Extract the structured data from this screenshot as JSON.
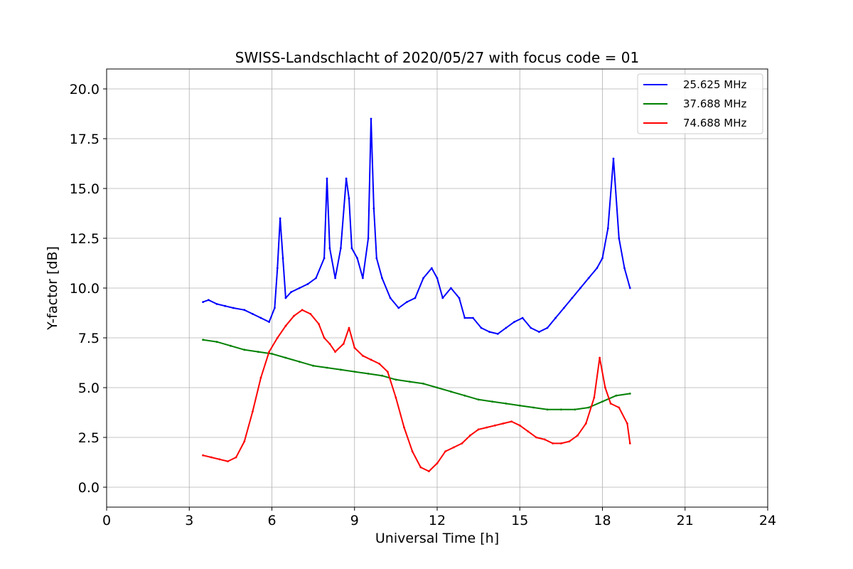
{
  "chart_data": {
    "type": "line",
    "title": "SWISS-Landschlacht of 2020/05/27 with focus code = 01",
    "xlabel": "Universal Time [h]",
    "ylabel": "Y-factor [dB]",
    "xlim": [
      0,
      24
    ],
    "ylim": [
      -1.0,
      21.0
    ],
    "xticks": [
      0,
      3,
      6,
      9,
      12,
      15,
      18,
      21,
      24
    ],
    "xtick_labels": [
      "0",
      "3",
      "6",
      "9",
      "12",
      "15",
      "18",
      "21",
      "24"
    ],
    "yticks": [
      0,
      2.5,
      5,
      7.5,
      10,
      12.5,
      15,
      17.5,
      20
    ],
    "ytick_labels": [
      "0.0",
      "2.5",
      "5.0",
      "7.5",
      "10.0",
      "12.5",
      "15.0",
      "17.5",
      "20.0"
    ],
    "grid": true,
    "legend_position": "top-right",
    "series": [
      {
        "name": "25.625 MHz",
        "color": "#0000ff",
        "x": [
          3.5,
          3.7,
          4.0,
          4.3,
          4.6,
          5.0,
          5.3,
          5.6,
          5.9,
          6.1,
          6.2,
          6.3,
          6.4,
          6.5,
          6.7,
          7.0,
          7.3,
          7.6,
          7.9,
          8.0,
          8.1,
          8.3,
          8.5,
          8.7,
          8.8,
          8.9,
          9.1,
          9.3,
          9.5,
          9.6,
          9.7,
          9.8,
          10.0,
          10.3,
          10.6,
          10.9,
          11.2,
          11.5,
          11.8,
          12.0,
          12.2,
          12.5,
          12.8,
          13.0,
          13.3,
          13.6,
          13.9,
          14.2,
          14.5,
          14.8,
          15.1,
          15.4,
          15.7,
          16.0,
          16.3,
          16.6,
          16.9,
          17.2,
          17.5,
          17.8,
          18.0,
          18.2,
          18.4,
          18.6,
          18.8,
          19.0
        ],
        "y": [
          9.3,
          9.4,
          9.2,
          9.1,
          9.0,
          8.9,
          8.7,
          8.5,
          8.3,
          9.0,
          11.0,
          13.5,
          11.5,
          9.5,
          9.8,
          10.0,
          10.2,
          10.5,
          11.5,
          15.5,
          12.0,
          10.5,
          12.0,
          15.5,
          14.5,
          12.0,
          11.5,
          10.5,
          12.5,
          18.5,
          14.0,
          11.5,
          10.5,
          9.5,
          9.0,
          9.3,
          9.5,
          10.5,
          11.0,
          10.5,
          9.5,
          10.0,
          9.5,
          8.5,
          8.5,
          8.0,
          7.8,
          7.7,
          8.0,
          8.3,
          8.5,
          8.0,
          7.8,
          8.0,
          8.5,
          9.0,
          9.5,
          10.0,
          10.5,
          11.0,
          11.5,
          13.0,
          16.5,
          12.5,
          11.0,
          10.0
        ]
      },
      {
        "name": "37.688 MHz",
        "color": "#008000",
        "x": [
          3.5,
          4.0,
          4.5,
          5.0,
          5.5,
          6.0,
          6.5,
          7.0,
          7.5,
          8.0,
          8.5,
          9.0,
          9.5,
          10.0,
          10.5,
          11.0,
          11.5,
          12.0,
          12.5,
          13.0,
          13.5,
          14.0,
          14.5,
          15.0,
          15.5,
          16.0,
          16.5,
          17.0,
          17.5,
          18.0,
          18.5,
          19.0
        ],
        "y": [
          7.4,
          7.3,
          7.1,
          6.9,
          6.8,
          6.7,
          6.5,
          6.3,
          6.1,
          6.0,
          5.9,
          5.8,
          5.7,
          5.6,
          5.4,
          5.3,
          5.2,
          5.0,
          4.8,
          4.6,
          4.4,
          4.3,
          4.2,
          4.1,
          4.0,
          3.9,
          3.9,
          3.9,
          4.0,
          4.3,
          4.6,
          4.7
        ]
      },
      {
        "name": "74.688 MHz",
        "color": "#ff0000",
        "x": [
          3.5,
          3.8,
          4.1,
          4.4,
          4.7,
          5.0,
          5.3,
          5.6,
          5.9,
          6.2,
          6.5,
          6.8,
          7.1,
          7.4,
          7.7,
          7.9,
          8.1,
          8.3,
          8.6,
          8.8,
          9.0,
          9.3,
          9.6,
          9.9,
          10.2,
          10.5,
          10.8,
          11.1,
          11.4,
          11.7,
          12.0,
          12.3,
          12.6,
          12.9,
          13.2,
          13.5,
          13.8,
          14.1,
          14.4,
          14.7,
          15.0,
          15.3,
          15.6,
          15.9,
          16.2,
          16.5,
          16.8,
          17.1,
          17.4,
          17.7,
          17.9,
          18.1,
          18.3,
          18.6,
          18.9,
          19.0
        ],
        "y": [
          1.6,
          1.5,
          1.4,
          1.3,
          1.5,
          2.3,
          3.8,
          5.5,
          6.8,
          7.5,
          8.1,
          8.6,
          8.9,
          8.7,
          8.2,
          7.5,
          7.2,
          6.8,
          7.2,
          8.0,
          7.0,
          6.6,
          6.4,
          6.2,
          5.8,
          4.5,
          3.0,
          1.8,
          1.0,
          0.8,
          1.2,
          1.8,
          2.0,
          2.2,
          2.6,
          2.9,
          3.0,
          3.1,
          3.2,
          3.3,
          3.1,
          2.8,
          2.5,
          2.4,
          2.2,
          2.2,
          2.3,
          2.6,
          3.2,
          4.5,
          6.5,
          5.0,
          4.2,
          4.0,
          3.2,
          2.2
        ]
      }
    ]
  }
}
